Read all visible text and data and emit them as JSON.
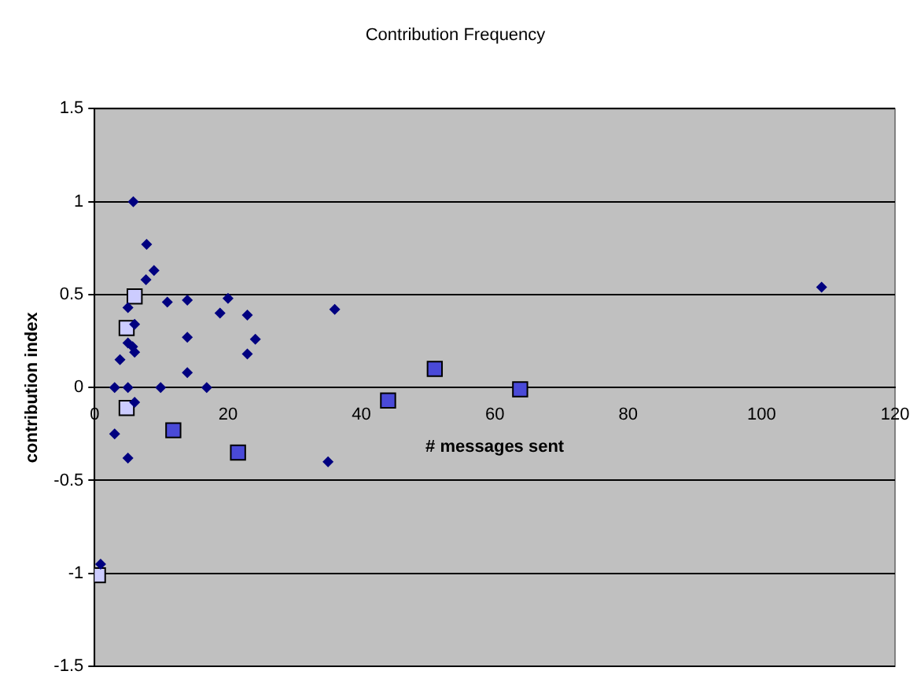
{
  "chart_data": {
    "type": "scatter",
    "title": "Contribution Frequency",
    "xlabel": "# messages sent",
    "ylabel": "contribution index",
    "xlim": [
      0,
      120
    ],
    "xticks": [
      0,
      20,
      40,
      60,
      80,
      100,
      120
    ],
    "ylim": [
      -1.5,
      1.5
    ],
    "yticks": [
      -1.5,
      -1,
      -0.5,
      0,
      0.5,
      1,
      1.5
    ],
    "grid": "y",
    "legend": false,
    "series": [
      {
        "color": "#000080",
        "marker": "diamond",
        "x": [
          5.8,
          7.8,
          7.7,
          8.9,
          5.0,
          6.0,
          5.0,
          5.7,
          6.0,
          3.8,
          3.0,
          5.0,
          6.0,
          3.0,
          5.0,
          9.9,
          10.9,
          13.9,
          13.9,
          13.9,
          16.8,
          18.8,
          20,
          22.9,
          22.9,
          24.1,
          0.9,
          36,
          35,
          109
        ],
        "values": [
          1.0,
          0.77,
          0.58,
          0.63,
          0.43,
          0.34,
          0.24,
          0.22,
          0.19,
          0.15,
          0,
          0,
          -0.08,
          -0.25,
          -0.38,
          0,
          0.46,
          0.47,
          0.27,
          0.08,
          0,
          0.4,
          0.48,
          0.39,
          0.18,
          0.26,
          -0.95,
          0.42,
          -0.4,
          0.54
        ]
      },
      {
        "color": "#ccccff",
        "marker": "square",
        "x": [
          6.0,
          4.8,
          4.8,
          0.5
        ],
        "values": [
          0.49,
          0.32,
          -0.11,
          -1.01
        ]
      },
      {
        "color": "#4a4ad8",
        "marker": "square",
        "x": [
          11.8,
          21.5,
          44,
          51,
          63.8
        ],
        "values": [
          -0.23,
          -0.35,
          -0.07,
          0.1,
          -0.01
        ]
      }
    ]
  }
}
